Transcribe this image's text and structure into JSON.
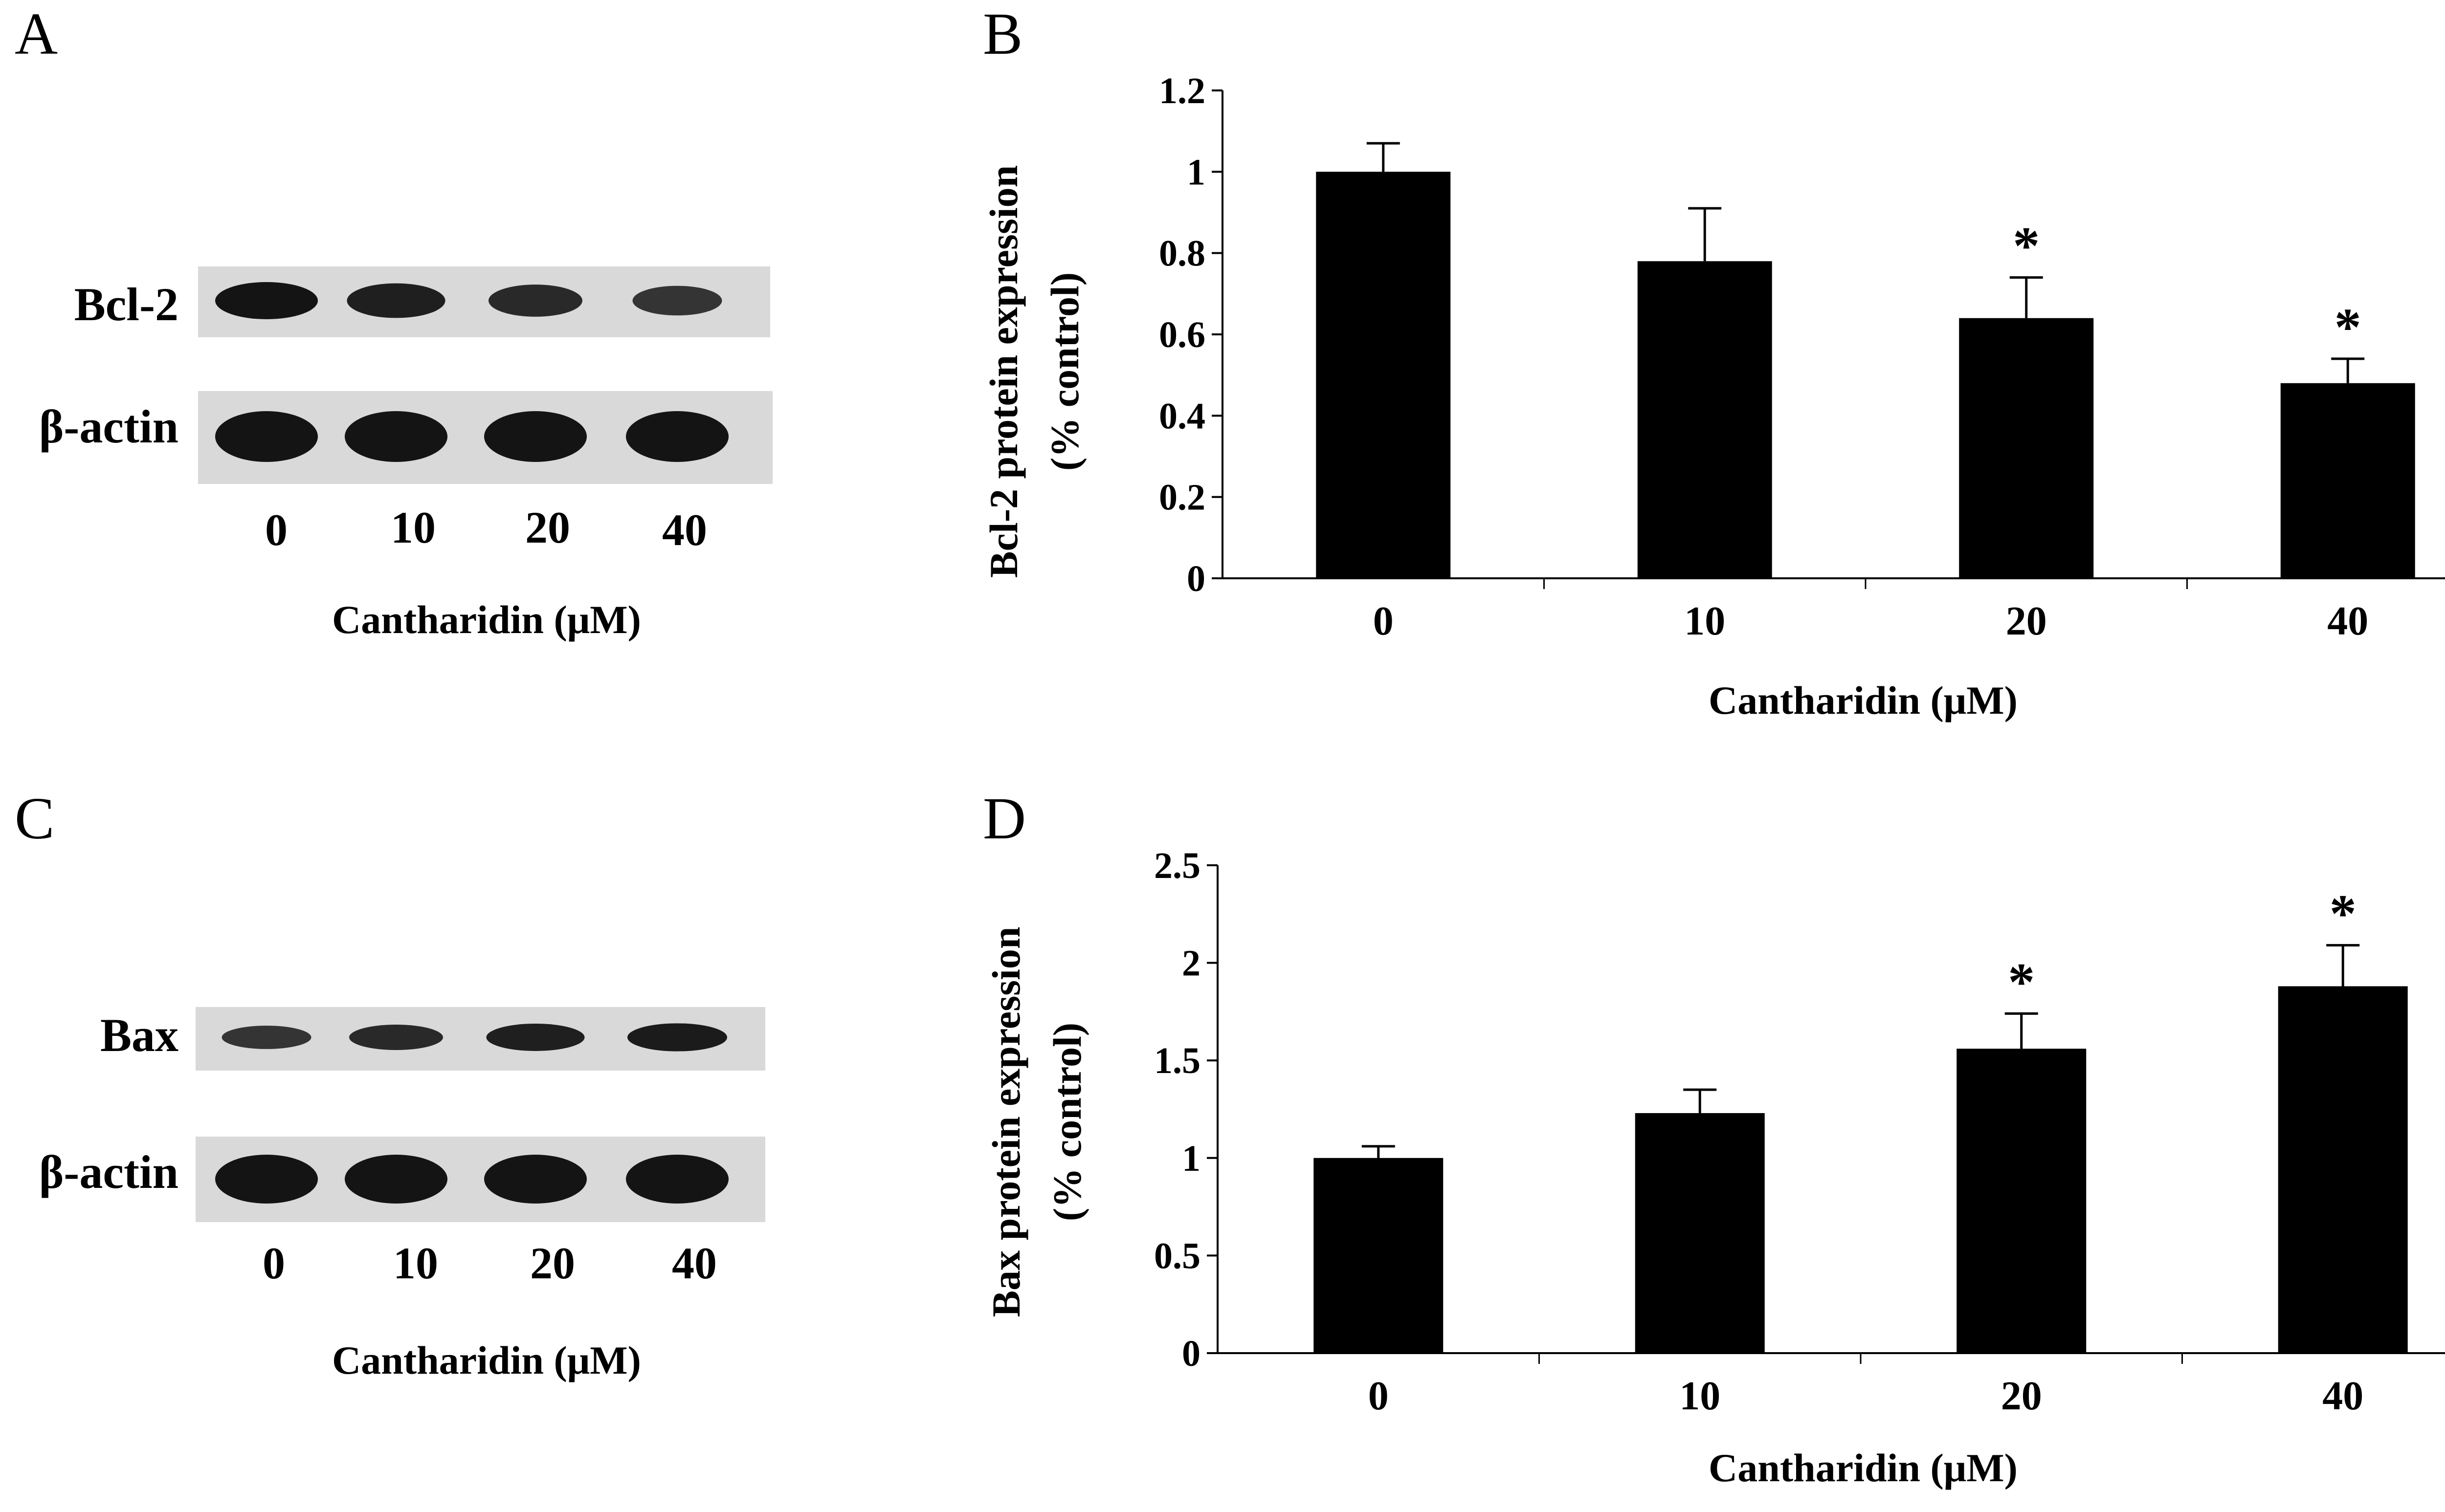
{
  "panels": {
    "A": {
      "letter": "A",
      "rows": [
        {
          "label": "Bcl-2",
          "band_intensities": [
            1.0,
            0.85,
            0.7,
            0.55
          ]
        },
        {
          "label": "β-actin",
          "band_intensities": [
            1.0,
            1.0,
            1.0,
            1.0
          ]
        }
      ],
      "lanes": [
        "0",
        "10",
        "20",
        "40"
      ],
      "xlabel": "Cantharidin (μM)"
    },
    "C": {
      "letter": "C",
      "rows": [
        {
          "label": "Bax",
          "band_intensities": [
            0.55,
            0.7,
            0.85,
            0.9
          ]
        },
        {
          "label": "β-actin",
          "band_intensities": [
            1.0,
            1.0,
            1.0,
            1.0
          ]
        }
      ],
      "lanes": [
        "0",
        "10",
        "20",
        "40"
      ],
      "xlabel": "Cantharidin (μM)"
    }
  },
  "chart_data": [
    {
      "panel": "B",
      "letter": "B",
      "type": "bar",
      "categories": [
        "0",
        "10",
        "20",
        "40"
      ],
      "values": [
        1.0,
        0.78,
        0.64,
        0.48
      ],
      "errors": [
        0.07,
        0.13,
        0.1,
        0.06
      ],
      "significant": [
        false,
        false,
        true,
        true
      ],
      "sig_marker": "*",
      "ylim": [
        0,
        1.2
      ],
      "yticks": [
        "0",
        "0.2",
        "0.4",
        "0.6",
        "0.8",
        "1",
        "1.2"
      ],
      "ylabel_line1": "Bcl-2 protein expression",
      "ylabel_line2": "(% control)",
      "xlabel": "Cantharidin (μM)",
      "bar_color": "#000000"
    },
    {
      "panel": "D",
      "letter": "D",
      "type": "bar",
      "categories": [
        "0",
        "10",
        "20",
        "40"
      ],
      "values": [
        1.0,
        1.23,
        1.56,
        1.88
      ],
      "errors": [
        0.06,
        0.12,
        0.18,
        0.21
      ],
      "significant": [
        false,
        false,
        true,
        true
      ],
      "sig_marker": "*",
      "ylim": [
        0,
        2.5
      ],
      "yticks": [
        "0",
        "0.5",
        "1",
        "1.5",
        "2",
        "2.5"
      ],
      "ylabel_line1": "Bax protein expression",
      "ylabel_line2": "(% control)",
      "xlabel": "Cantharidin (μM)",
      "bar_color": "#000000"
    }
  ]
}
